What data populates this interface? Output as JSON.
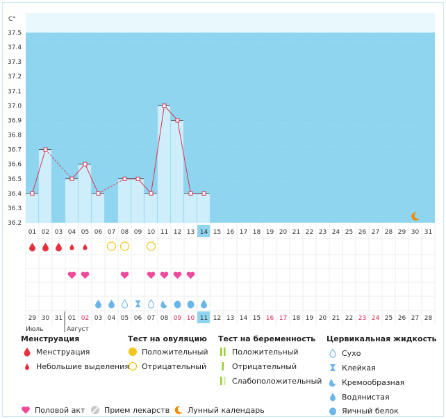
{
  "chart_data": {
    "type": "line",
    "ylabel": "C°",
    "ylim": [
      36.2,
      37.5
    ],
    "yticks": [
      "37.5",
      "37.4",
      "37.3",
      "37.2",
      "37.1",
      "37.0",
      "36.9",
      "36.8",
      "36.7",
      "36.6",
      "36.5",
      "36.4",
      "36.3",
      "36.2"
    ],
    "days_row1": [
      "01",
      "02",
      "03",
      "04",
      "05",
      "06",
      "07",
      "08",
      "09",
      "10",
      "11",
      "12",
      "13",
      "14",
      "15",
      "16",
      "17",
      "18",
      "19",
      "20",
      "21",
      "22",
      "23",
      "24",
      "25",
      "26",
      "27",
      "28",
      "29",
      "30",
      "31"
    ],
    "highlight_day_index": 13,
    "temperature": [
      36.4,
      36.7,
      null,
      36.5,
      36.6,
      36.4,
      null,
      36.5,
      36.5,
      36.4,
      37.0,
      36.9,
      36.4,
      36.4
    ],
    "dashed_gaps": [
      [
        1,
        3
      ],
      [
        5,
        7
      ]
    ],
    "menstruation": [
      "heavy",
      "heavy",
      "heavy",
      "light",
      "light",
      null,
      null,
      null,
      null,
      null,
      null,
      null,
      null,
      null
    ],
    "ovulation_test": [
      null,
      null,
      null,
      null,
      null,
      null,
      "negative",
      "negative",
      null,
      "negative",
      null,
      null,
      null,
      null
    ],
    "intercourse": [
      null,
      null,
      null,
      true,
      true,
      null,
      null,
      true,
      null,
      true,
      true,
      true,
      true,
      null
    ],
    "cervical_fluid": [
      null,
      null,
      null,
      null,
      null,
      "watery",
      "watery",
      "dry",
      "sticky",
      "dry",
      "creamy",
      "egg-white",
      "egg-white",
      "watery"
    ],
    "moon_day_index": 29,
    "days_row2": [
      "29",
      "30",
      "31",
      "01",
      "02",
      "03",
      "04",
      "05",
      "06",
      "07",
      "08",
      "09",
      "10",
      "11",
      "12",
      "13",
      "14",
      "15",
      "16",
      "17",
      "18",
      "19",
      "20",
      "21",
      "22",
      "23",
      "24",
      "25",
      "26",
      "27",
      "28"
    ],
    "days_row2_red": [
      4,
      11,
      12,
      18,
      19,
      25,
      26
    ],
    "days_row1_highlight_bg": 13,
    "month_labels": [
      {
        "label": "Июль",
        "col": 0
      },
      {
        "label": "Август",
        "col": 3
      }
    ]
  },
  "legend": {
    "menstruation": {
      "title": "Менструация",
      "items": [
        "Менструация",
        "Небольшие выделения"
      ]
    },
    "ovulation": {
      "title": "Тест на овуляцию",
      "items": [
        "Положительный",
        "Отрицательный"
      ]
    },
    "pregnancy": {
      "title": "Тест на беременность",
      "items": [
        "Положительный",
        "Отрицательный",
        "Слабоположительный"
      ]
    },
    "cervical": {
      "title": "Цервикальная жидкость",
      "items": [
        "Сухо",
        "Клейкая",
        "Кремообразная",
        "Водянистая",
        "Яичный белок"
      ]
    },
    "bottom": [
      "Половой акт",
      "Прием лекарств",
      "Лунный календарь"
    ]
  },
  "colors": {
    "sky": "#8fd5f0",
    "bar": "#cfeefc",
    "line": "#d9334d",
    "drop_red": "#e6323e",
    "heart": "#f04a9c",
    "drop_blue": "#6bb6e8",
    "ovulation_yellow": "#f5c518",
    "preg_green": "#9acd32",
    "moon": "#f08c00",
    "highlight": "#8fd5f0",
    "red_day": "#d7264f"
  }
}
